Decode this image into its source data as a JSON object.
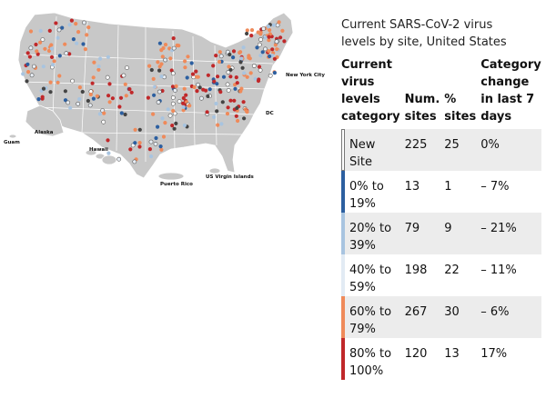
{
  "map": {
    "labels": {
      "guam": "Guam",
      "alaska": "Alaska",
      "hawaii": "Hawaii",
      "puerto_rico": "Puerto Rico",
      "usvi": "US Virgin Islands",
      "nyc": "New York City",
      "dc": "DC"
    },
    "colors": {
      "background": "#c8c8c8",
      "new_site": "#ffffff",
      "level_0_19": "#2c5fa0",
      "level_20_39": "#a8c4e0",
      "level_40_59": "#e8eef5",
      "level_60_79": "#ef8a5a",
      "level_80_100": "#c0282a",
      "no_recent_data": "#444444"
    }
  },
  "panel": {
    "title_line1": "Current SARS-CoV-2 virus",
    "title_line2": "levels by site, United States",
    "headers": {
      "category": [
        "Current",
        "virus",
        "levels",
        "category"
      ],
      "num_sites": [
        "Num.",
        "sites"
      ],
      "pct_sites": [
        "%",
        "sites"
      ],
      "change": [
        "Category",
        "change",
        "in last 7",
        "days"
      ]
    },
    "rows": [
      {
        "label1": "New",
        "label2": "Site",
        "num": "225",
        "pct": "25",
        "change": "0%",
        "color": "#ffffff"
      },
      {
        "label1": "0% to",
        "label2": "19%",
        "num": "13",
        "pct": "1",
        "change": "– 7%",
        "color": "#2c5fa0"
      },
      {
        "label1": "20% to",
        "label2": "39%",
        "num": "79",
        "pct": "9",
        "change": "– 21%",
        "color": "#a8c4e0"
      },
      {
        "label1": "40% to",
        "label2": "59%",
        "num": "198",
        "pct": "22",
        "change": "– 11%",
        "color": "#e2ebf4"
      },
      {
        "label1": "60% to",
        "label2": "79%",
        "num": "267",
        "pct": "30",
        "change": "– 6%",
        "color": "#ef8a5a"
      },
      {
        "label1": "80% to",
        "label2": "100%",
        "num": "120",
        "pct": "13",
        "change": "17%",
        "color": "#c0282a"
      }
    ]
  }
}
